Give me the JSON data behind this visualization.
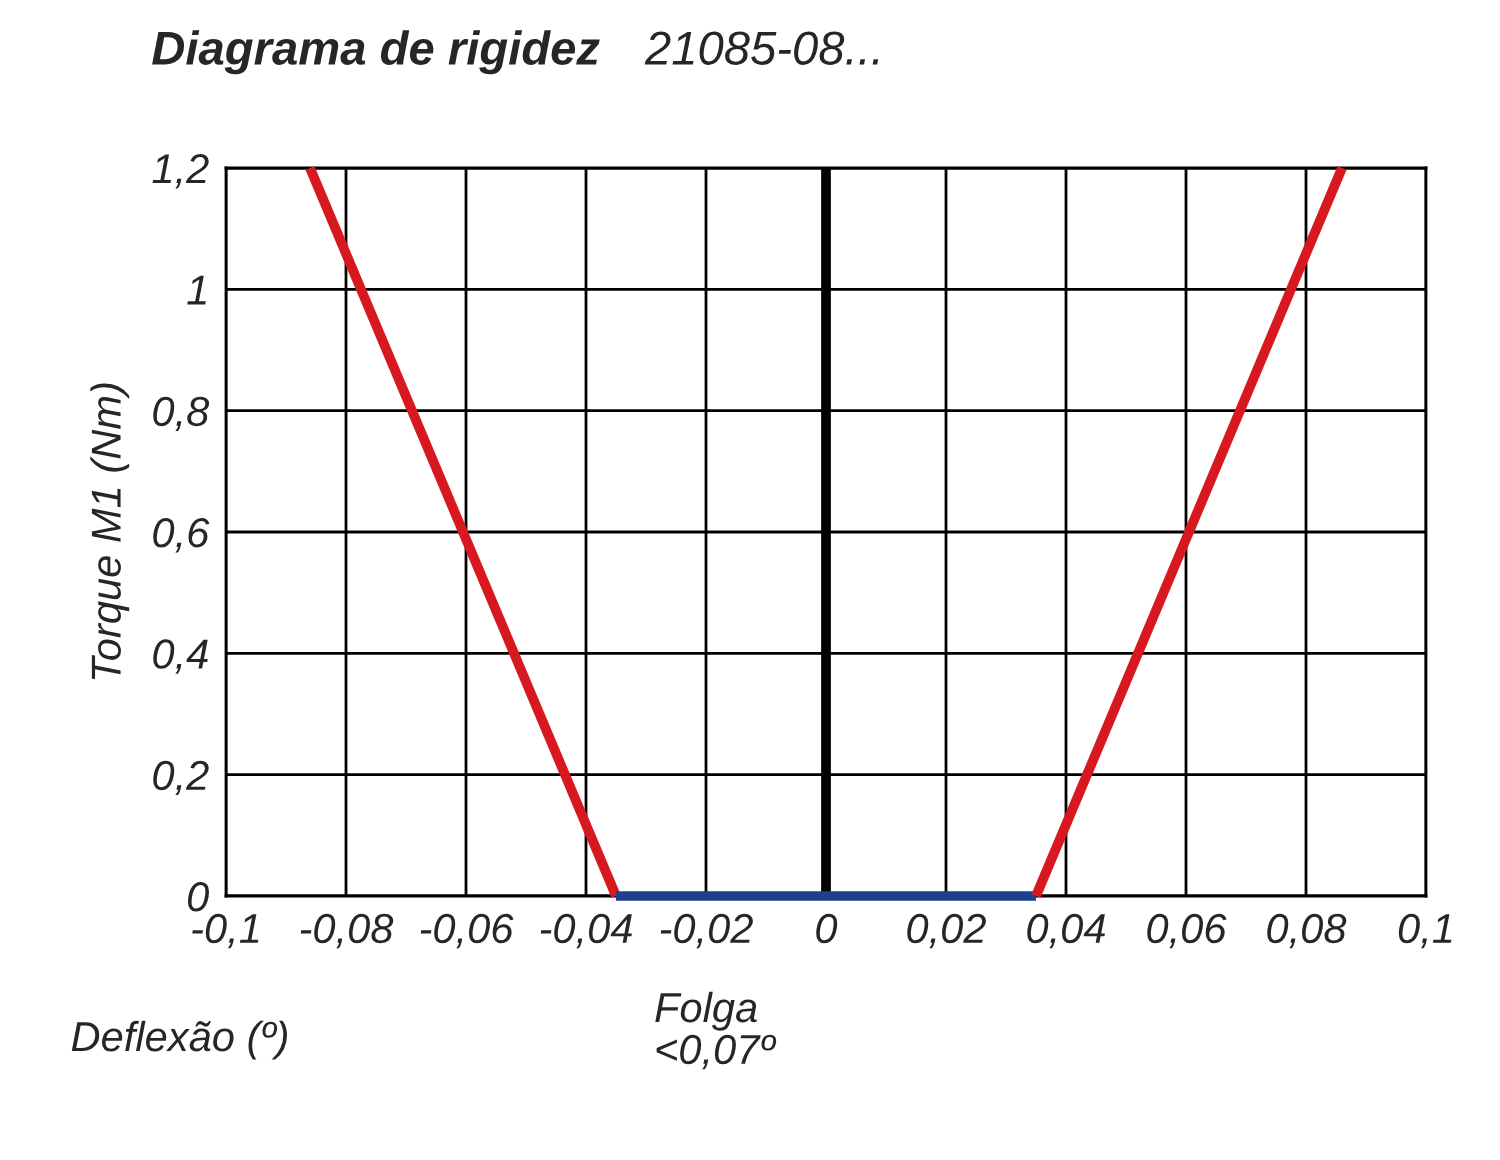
{
  "chart_data": {
    "type": "line",
    "title": "Diagrama de rigidez",
    "subtitle": "21085-08...",
    "ylabel": "Torque M1 (Nm)",
    "annotations": [
      "Deflexão (º)",
      "Folga\n<0,07º"
    ],
    "series": [
      {
        "color": "#d7191f",
        "x": [
          -0.086,
          -0.035
        ],
        "values": [
          1.2,
          0
        ]
      },
      {
        "color": "#1f3f8f",
        "x": [
          -0.035,
          0.035
        ],
        "values": [
          0,
          0
        ]
      },
      {
        "color": "#d7191f",
        "x": [
          0.035,
          0.086
        ],
        "values": [
          0,
          1.2
        ]
      }
    ],
    "ref_lines": [
      {
        "axis": "x",
        "value": 0,
        "label": null,
        "color": "#000000"
      }
    ],
    "xlim": [
      -0.1,
      0.1
    ],
    "ylim": [
      0,
      1.2
    ],
    "xticks": [
      {
        "value": -0.1,
        "label": "-0,1"
      },
      {
        "value": -0.08,
        "label": "-0,08"
      },
      {
        "value": -0.06,
        "label": "-0,06"
      },
      {
        "value": -0.04,
        "label": "-0,04"
      },
      {
        "value": -0.02,
        "label": "-0,02"
      },
      0,
      {
        "value": 0.02,
        "label": "0,02"
      },
      {
        "value": 0.04,
        "label": "0,04"
      },
      {
        "value": 0.06,
        "label": "0,06"
      },
      {
        "value": 0.08,
        "label": "0,08"
      },
      {
        "value": 0.1,
        "label": "0,1"
      }
    ],
    "yticks": [
      0,
      {
        "value": 0.2,
        "label": "0,2"
      },
      {
        "value": 0.4,
        "label": "0,4"
      },
      {
        "value": 0.6,
        "label": "0,6"
      },
      {
        "value": 0.8,
        "label": "0,8"
      },
      1,
      {
        "value": 1.2,
        "label": "1,2"
      }
    ],
    "grid": true,
    "marker": "none",
    "line_style": "solid"
  }
}
